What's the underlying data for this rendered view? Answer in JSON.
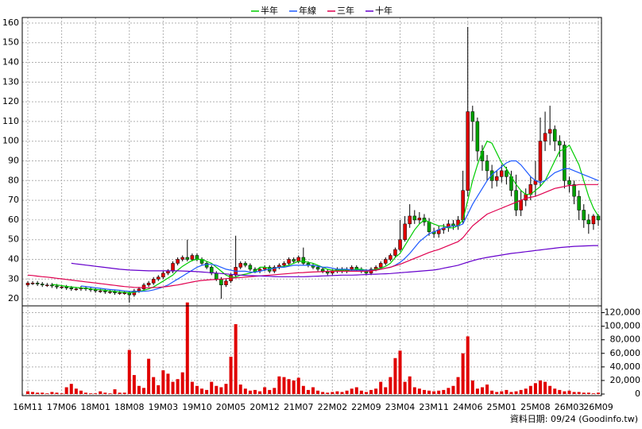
{
  "chart_data": {
    "type": "candlestick",
    "categories": [
      "16M11",
      null,
      null,
      null,
      null,
      null,
      null,
      "17M06",
      null,
      null,
      null,
      null,
      null,
      null,
      "18M01",
      null,
      null,
      null,
      null,
      null,
      null,
      "18M08",
      null,
      null,
      null,
      null,
      null,
      null,
      "19M03",
      null,
      null,
      null,
      null,
      null,
      null,
      "19M10",
      null,
      null,
      null,
      null,
      null,
      null,
      "20M05",
      null,
      null,
      null,
      null,
      null,
      null,
      "20M12",
      null,
      null,
      null,
      null,
      null,
      null,
      "21M07",
      null,
      null,
      null,
      null,
      null,
      null,
      "22M02",
      null,
      null,
      null,
      null,
      null,
      null,
      "22M09",
      null,
      null,
      null,
      null,
      null,
      null,
      "23M04",
      null,
      null,
      null,
      null,
      null,
      null,
      "23M11",
      null,
      null,
      null,
      null,
      null,
      null,
      "24M06",
      null,
      null,
      null,
      null,
      null,
      null,
      "25M01",
      null,
      null,
      null,
      null,
      null,
      null,
      "25M08",
      null,
      null,
      null,
      null,
      null,
      null,
      "26M03",
      null,
      null,
      null,
      null,
      null,
      "26M09"
    ],
    "open": [
      27,
      28,
      28,
      27.5,
      27,
      27,
      26.5,
      26,
      26,
      25.5,
      25,
      25,
      25.5,
      25,
      24.5,
      24,
      24,
      23.5,
      23.5,
      23,
      23,
      23,
      22,
      24,
      25,
      27,
      28,
      30,
      31,
      33,
      34,
      38,
      40,
      41,
      40,
      42,
      40,
      38,
      36,
      33,
      30,
      27,
      29,
      32,
      36,
      38,
      37,
      35,
      34,
      35,
      36,
      34,
      36,
      37,
      38,
      40,
      39,
      41,
      38,
      37,
      36,
      35,
      34,
      33,
      34,
      35,
      34,
      35,
      36,
      35,
      34,
      33,
      35,
      36,
      38,
      40,
      42,
      45,
      50,
      58,
      62,
      60,
      61,
      59,
      54,
      53,
      55,
      56,
      58,
      57,
      60,
      75,
      115,
      110,
      95,
      90,
      85,
      80,
      82,
      85,
      82,
      75,
      65,
      70,
      73,
      78,
      80,
      100,
      104,
      106,
      100,
      98,
      80,
      78,
      72,
      65,
      60,
      58,
      62
    ],
    "high": [
      29,
      29,
      29,
      28.5,
      28,
      28,
      27.5,
      27,
      27,
      26.5,
      26,
      26.5,
      26.5,
      26,
      25.5,
      25,
      25,
      24.5,
      24.5,
      24,
      24,
      24,
      25,
      26,
      28,
      29,
      31,
      32,
      34,
      35,
      39,
      41,
      42,
      50,
      43,
      43,
      41,
      39,
      37,
      34,
      31,
      30,
      33,
      52,
      39,
      39,
      38,
      36,
      36,
      37,
      37,
      37,
      38,
      39,
      41,
      41,
      42,
      46,
      39,
      38,
      37,
      36,
      35,
      35,
      36,
      36,
      36,
      37,
      37,
      36,
      35,
      36,
      37,
      39,
      41,
      43,
      46,
      60,
      62,
      68,
      65,
      64,
      63,
      61,
      56,
      57,
      58,
      60,
      60,
      62,
      85,
      158,
      118,
      112,
      98,
      93,
      88,
      85,
      88,
      87,
      85,
      83,
      75,
      76,
      82,
      90,
      112,
      115,
      118,
      108,
      103,
      100,
      82,
      80,
      75,
      68,
      63,
      63,
      63
    ],
    "low": [
      26,
      27,
      26.5,
      26,
      26,
      25.5,
      25,
      25,
      24.5,
      24,
      24,
      24,
      24,
      23.5,
      23,
      23,
      22.5,
      22.5,
      22,
      22,
      22,
      18,
      21,
      23,
      24,
      26,
      27,
      29,
      30,
      32,
      33,
      37,
      39,
      39,
      39,
      39,
      37,
      35,
      32,
      29,
      20,
      26,
      28,
      31,
      35,
      36,
      34,
      33,
      33,
      34,
      33,
      33,
      35,
      36,
      37,
      38,
      38,
      37,
      36,
      35,
      34,
      33,
      32,
      32,
      33,
      33,
      33,
      34,
      34,
      33,
      32,
      32,
      34,
      35,
      37,
      39,
      41,
      44,
      49,
      56,
      58,
      58,
      57,
      52,
      51,
      51,
      53,
      54,
      55,
      55,
      58,
      72,
      100,
      90,
      85,
      80,
      76,
      77,
      79,
      78,
      72,
      62,
      62,
      67,
      70,
      72,
      77,
      95,
      98,
      95,
      92,
      76,
      74,
      68,
      60,
      56,
      53,
      55,
      57
    ],
    "close": [
      28,
      28,
      27.5,
      27,
      27,
      26.5,
      26,
      26,
      25.5,
      25,
      25,
      25.5,
      25,
      24.5,
      24,
      24,
      23.5,
      23.5,
      23,
      23,
      23,
      22,
      24,
      25,
      27,
      28,
      30,
      31,
      33,
      34,
      38,
      40,
      41,
      40,
      42,
      40,
      38,
      36,
      33,
      30,
      27,
      29,
      32,
      36,
      38,
      37,
      35,
      34,
      35,
      36,
      34,
      36,
      37,
      38,
      40,
      39,
      41,
      38,
      37,
      36,
      35,
      34,
      33,
      34,
      35,
      34,
      35,
      36,
      35,
      34,
      33,
      35,
      36,
      38,
      40,
      42,
      45,
      50,
      58,
      62,
      60,
      61,
      59,
      54,
      53,
      55,
      56,
      58,
      57,
      60,
      75,
      115,
      110,
      95,
      90,
      85,
      80,
      82,
      85,
      82,
      75,
      65,
      70,
      73,
      78,
      80,
      100,
      104,
      106,
      100,
      98,
      80,
      78,
      72,
      65,
      60,
      58,
      62,
      60
    ],
    "volume": [
      4000,
      3000,
      2000,
      2000,
      1000,
      3000,
      2000,
      1000,
      10000,
      15000,
      8000,
      5000,
      2000,
      1000,
      1000,
      4000,
      2000,
      1000,
      7000,
      2000,
      2000,
      65000,
      28000,
      12000,
      9000,
      52000,
      25000,
      13000,
      35000,
      30000,
      18000,
      22000,
      32000,
      135000,
      18000,
      12000,
      8000,
      6000,
      18000,
      12000,
      10000,
      15000,
      55000,
      103000,
      14000,
      8000,
      5000,
      6000,
      4000,
      10000,
      6000,
      9000,
      26000,
      25000,
      22000,
      20000,
      24000,
      12000,
      6000,
      10000,
      5000,
      3000,
      2000,
      3000,
      4000,
      3000,
      5000,
      8000,
      10000,
      5000,
      3000,
      6000,
      8000,
      18000,
      10000,
      25000,
      53000,
      64000,
      18000,
      26000,
      10000,
      8000,
      6000,
      5000,
      4000,
      5000,
      6000,
      9000,
      12000,
      25000,
      60000,
      85000,
      20000,
      8000,
      10000,
      14000,
      5000,
      3000,
      4000,
      6000,
      3000,
      4000,
      6000,
      8000,
      12000,
      16000,
      20000,
      18000,
      12000,
      8000,
      6000,
      4000,
      5000,
      3000,
      3000,
      2000,
      2000,
      1000,
      2000
    ],
    "up_color": "#e00000",
    "down_color": "#00a000",
    "volume_color": "#e00000",
    "series": [
      {
        "name": "半年",
        "color": "#00cc00",
        "values": [
          null,
          null,
          null,
          null,
          null,
          27.3,
          27,
          26.7,
          26.3,
          26,
          25.7,
          25.5,
          25.3,
          25,
          24.8,
          24.6,
          24.3,
          24,
          23.8,
          23.5,
          23.3,
          23.1,
          23.3,
          23.7,
          24.3,
          25,
          26,
          27.5,
          29,
          30.5,
          32,
          34.5,
          36.5,
          38,
          39.5,
          40,
          40,
          39,
          38,
          36,
          34,
          32,
          31,
          31,
          32,
          32.5,
          33,
          34,
          36,
          36,
          35.5,
          35.5,
          36,
          36.5,
          37,
          38,
          39,
          39,
          38.5,
          38,
          37,
          36,
          35,
          34.5,
          34.5,
          34.5,
          34.5,
          34.5,
          35,
          35,
          34.5,
          34.5,
          35,
          35.5,
          36.5,
          38,
          41,
          43,
          47,
          51,
          55,
          58,
          60,
          59,
          58,
          57,
          57,
          56,
          56,
          57,
          60,
          70,
          80,
          88,
          95,
          100,
          99,
          94,
          89,
          86,
          82,
          78,
          75,
          73,
          73,
          75,
          77,
          80,
          85,
          90,
          95,
          96,
          98,
          93,
          88,
          80,
          72,
          66,
          62
        ]
      },
      {
        "name": "年線",
        "color": "#1e5aff",
        "values": [
          null,
          null,
          null,
          null,
          null,
          null,
          null,
          null,
          null,
          null,
          null,
          26.5,
          26.2,
          25.9,
          25.6,
          25.3,
          25,
          24.7,
          24.5,
          24.3,
          24,
          23.8,
          23.7,
          23.7,
          23.8,
          24,
          24.5,
          25.2,
          26,
          27,
          28.5,
          30,
          31.5,
          33,
          34.5,
          36,
          37,
          37.5,
          37.5,
          37,
          36,
          35,
          34.5,
          34,
          34,
          34,
          33.5,
          33.5,
          34,
          34.5,
          35,
          35.5,
          36,
          36,
          36.5,
          37,
          37,
          37,
          37,
          37,
          36.5,
          36,
          36,
          35.5,
          35,
          35,
          35,
          34.5,
          34.5,
          34.5,
          34.5,
          34.5,
          34.5,
          35,
          35.5,
          36,
          37,
          38.5,
          40.5,
          43,
          46,
          49,
          51,
          53,
          54,
          55,
          56,
          56.5,
          57,
          57,
          58,
          63,
          68,
          72,
          76,
          80,
          83,
          85,
          87,
          89,
          90,
          90,
          88,
          85,
          82,
          80,
          79,
          80,
          82,
          84,
          85,
          86,
          86,
          85,
          84,
          83,
          82,
          81,
          80
        ]
      },
      {
        "name": "三年",
        "color": "#e0004f",
        "values": [
          32,
          31.8,
          31.5,
          31.2,
          31,
          30.7,
          30.4,
          30.1,
          29.8,
          29.5,
          29.2,
          28.9,
          28.6,
          28.3,
          28,
          27.7,
          27.4,
          27.1,
          26.8,
          26.5,
          26.2,
          26,
          25.8,
          25.7,
          25.6,
          25.6,
          25.7,
          25.8,
          26,
          26.3,
          26.7,
          27,
          27.5,
          28,
          28.5,
          29,
          29.3,
          29.5,
          29.7,
          29.8,
          30,
          30.2,
          30.4,
          30.6,
          30.8,
          31,
          31.2,
          31.4,
          31.6,
          31.8,
          32,
          32.2,
          32.4,
          32.6,
          32.8,
          33,
          33.2,
          33.3,
          33.5,
          33.6,
          33.7,
          33.8,
          33.9,
          34,
          34,
          34,
          34,
          34,
          34,
          34,
          34,
          34.2,
          34.5,
          35,
          35.5,
          36,
          36.8,
          37.5,
          38.5,
          39.5,
          40.5,
          41.5,
          42.5,
          43.5,
          44.3,
          45,
          46,
          47,
          48,
          49,
          51,
          54,
          57,
          59,
          61,
          63,
          64,
          65,
          66,
          67,
          68,
          69,
          70,
          71,
          71.5,
          72,
          73,
          74,
          75,
          76,
          76.5,
          77,
          77.5,
          77.5,
          78,
          78,
          78,
          78,
          78
        ]
      },
      {
        "name": "十年",
        "color": "#6600cc",
        "values": [
          null,
          null,
          null,
          null,
          null,
          null,
          null,
          null,
          null,
          38,
          37.7,
          37.4,
          37.1,
          36.8,
          36.5,
          36.2,
          35.9,
          35.6,
          35.3,
          35,
          34.8,
          34.6,
          34.5,
          34.4,
          34.3,
          34.2,
          34.2,
          34.2,
          34.2,
          34.2,
          34.2,
          34.2,
          34.1,
          34,
          33.9,
          33.8,
          33.6,
          33.4,
          33.2,
          33,
          32.8,
          32.6,
          32.4,
          32.2,
          32,
          31.9,
          31.8,
          31.7,
          31.6,
          31.5,
          31.4,
          31.3,
          31.2,
          31.2,
          31.2,
          31.2,
          31.2,
          31.2,
          31.3,
          31.4,
          31.5,
          31.6,
          31.7,
          31.8,
          31.9,
          32,
          32,
          32,
          32.1,
          32.2,
          32.3,
          32.4,
          32.5,
          32.6,
          32.7,
          32.8,
          33,
          33.2,
          33.4,
          33.6,
          33.8,
          34,
          34.2,
          34.4,
          34.6,
          35,
          35.5,
          36,
          36.5,
          37,
          37.8,
          38.6,
          39.3,
          40,
          40.5,
          41,
          41.4,
          41.8,
          42.2,
          42.6,
          43,
          43.3,
          43.6,
          43.9,
          44.2,
          44.5,
          44.8,
          45.1,
          45.4,
          45.7,
          46,
          46.2,
          46.4,
          46.6,
          46.7,
          46.8,
          46.9,
          47,
          47
        ]
      }
    ],
    "ylim": [
      16.4,
      162.8
    ],
    "yticks": [
      20,
      30,
      40,
      50,
      60,
      70,
      80,
      90,
      100,
      110,
      120,
      130,
      140,
      150,
      160
    ],
    "y2lim": [
      0,
      130000
    ],
    "y2ticks": [
      0,
      {
        "value": 20000,
        "label": "20,000"
      },
      {
        "value": 40000,
        "label": "40,000"
      },
      {
        "value": 60000,
        "label": "60,000"
      },
      {
        "value": 80000,
        "label": "80,000"
      },
      {
        "value": 100000,
        "label": "100,000"
      },
      {
        "value": 120000,
        "label": "120,000"
      }
    ],
    "grid": true,
    "footer": "資料日期: 09/24 (Goodinfo.tw)"
  }
}
